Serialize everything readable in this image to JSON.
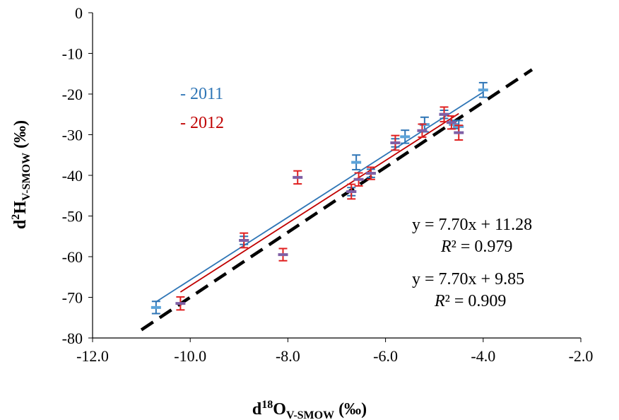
{
  "chart_data": {
    "type": "scatter",
    "xlabel": {
      "main": "d",
      "sup": "18",
      "main2": "O",
      "sub": "V-SMOW",
      "unit": " (‰)"
    },
    "ylabel": {
      "main": "d",
      "sup": "2",
      "main2": "H",
      "sub": "V-SMOW",
      "unit": " (‰)"
    },
    "xlim": [
      -12.0,
      -2.0
    ],
    "ylim": [
      -80,
      0
    ],
    "xticks": [
      -12.0,
      -10.0,
      -8.0,
      -6.0,
      -4.0,
      -2.0
    ],
    "xtick_labels": [
      "-12.0",
      "-10.0",
      "-8.0",
      "-6.0",
      "-4.0",
      "-2.0"
    ],
    "yticks": [
      0,
      -10,
      -20,
      -30,
      -40,
      -50,
      -60,
      -70,
      -80
    ],
    "ytick_labels": [
      "0",
      "-10",
      "-20",
      "-30",
      "-40",
      "-50",
      "-60",
      "-70",
      "-80"
    ],
    "grid": false,
    "legend": [
      {
        "label": "- 2011",
        "color": "#2e75b6"
      },
      {
        "label": "- 2012",
        "color": "#c00000"
      }
    ],
    "series": [
      {
        "color": "#2e75b6",
        "marker_color": "#5ba3d9",
        "errorbar_color": "#2e75b6",
        "points": [
          {
            "x": -10.7,
            "y": -72.5,
            "err": 1.5
          },
          {
            "x": -8.9,
            "y": -56.0,
            "err": 1.0
          },
          {
            "x": -6.7,
            "y": -44.0,
            "err": 1.0
          },
          {
            "x": -6.6,
            "y": -36.8,
            "err": 1.8
          },
          {
            "x": -6.3,
            "y": -39.5,
            "err": 1.0
          },
          {
            "x": -5.8,
            "y": -32.0,
            "err": 1.0
          },
          {
            "x": -5.6,
            "y": -30.5,
            "err": 1.6
          },
          {
            "x": -5.2,
            "y": -27.5,
            "err": 1.8
          },
          {
            "x": -4.8,
            "y": -25.0,
            "err": 1.0
          },
          {
            "x": -4.6,
            "y": -27.5,
            "err": 1.0
          },
          {
            "x": -4.5,
            "y": -28.0,
            "err": 1.5
          },
          {
            "x": -4.0,
            "y": -19.0,
            "err": 1.8
          }
        ],
        "fit": {
          "slope": 7.7,
          "intercept": 11.28,
          "x_range": [
            -10.7,
            -4.0
          ]
        }
      },
      {
        "color": "#c00000",
        "marker_color": "#7f5fa5",
        "errorbar_color": "#e02020",
        "points": [
          {
            "x": -10.2,
            "y": -71.5,
            "err": 1.6
          },
          {
            "x": -8.9,
            "y": -56.0,
            "err": 1.8
          },
          {
            "x": -8.1,
            "y": -59.5,
            "err": 1.5
          },
          {
            "x": -7.8,
            "y": -40.5,
            "err": 1.6
          },
          {
            "x": -6.7,
            "y": -44.0,
            "err": 1.8
          },
          {
            "x": -6.55,
            "y": -41.0,
            "err": 1.6
          },
          {
            "x": -6.3,
            "y": -39.5,
            "err": 1.5
          },
          {
            "x": -5.8,
            "y": -32.0,
            "err": 1.8
          },
          {
            "x": -5.25,
            "y": -29.0,
            "err": 1.6
          },
          {
            "x": -4.8,
            "y": -25.0,
            "err": 1.8
          },
          {
            "x": -4.65,
            "y": -27.0,
            "err": 1.6
          },
          {
            "x": -4.5,
            "y": -29.5,
            "err": 1.8
          }
        ],
        "fit": {
          "slope": 7.7,
          "intercept": 9.85,
          "x_range": [
            -10.2,
            -4.5
          ]
        }
      }
    ],
    "reference_line": {
      "slope": 8.0,
      "intercept": 10.0,
      "x_range": [
        -11.0,
        -3.0
      ],
      "color": "#000000",
      "style": "dashed"
    },
    "annotations": [
      {
        "eq": "y = 7.70x + 11.28",
        "r2_label": "R",
        "r2_value": "² = 0.979"
      },
      {
        "eq": "y = 7.70x + 9.85",
        "r2_label": "R",
        "r2_value": "² = 0.909"
      }
    ]
  }
}
